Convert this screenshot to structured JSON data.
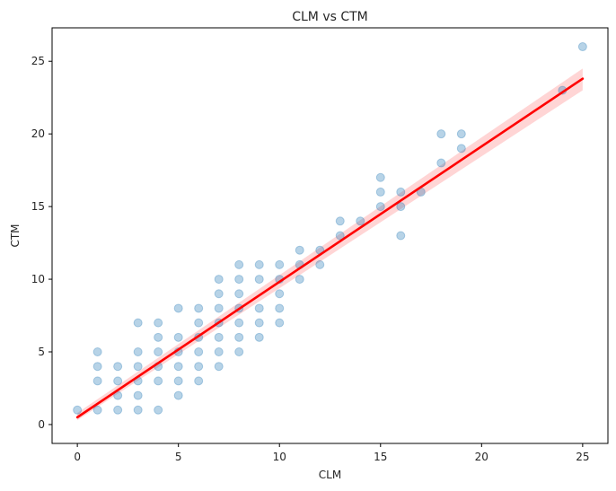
{
  "chart_data": {
    "type": "scatter",
    "title": "CLM vs CTM",
    "xlabel": "CLM",
    "ylabel": "CTM",
    "xlim": [
      -1.25,
      26.25
    ],
    "ylim": [
      -1.3,
      27.3
    ],
    "xticks": [
      0,
      5,
      10,
      15,
      20,
      25
    ],
    "yticks": [
      0,
      5,
      10,
      15,
      20,
      25
    ],
    "grid": false,
    "points": [
      [
        0,
        1
      ],
      [
        1,
        1
      ],
      [
        1,
        3
      ],
      [
        1,
        4
      ],
      [
        1,
        5
      ],
      [
        2,
        1
      ],
      [
        2,
        2
      ],
      [
        2,
        3
      ],
      [
        2,
        4
      ],
      [
        3,
        1
      ],
      [
        3,
        2
      ],
      [
        3,
        3
      ],
      [
        3,
        4
      ],
      [
        3,
        5
      ],
      [
        3,
        7
      ],
      [
        4,
        1
      ],
      [
        4,
        3
      ],
      [
        4,
        4
      ],
      [
        4,
        5
      ],
      [
        4,
        6
      ],
      [
        4,
        7
      ],
      [
        5,
        2
      ],
      [
        5,
        3
      ],
      [
        5,
        4
      ],
      [
        5,
        5
      ],
      [
        5,
        6
      ],
      [
        5,
        8
      ],
      [
        6,
        3
      ],
      [
        6,
        4
      ],
      [
        6,
        5
      ],
      [
        6,
        6
      ],
      [
        6,
        7
      ],
      [
        6,
        8
      ],
      [
        7,
        4
      ],
      [
        7,
        5
      ],
      [
        7,
        6
      ],
      [
        7,
        7
      ],
      [
        7,
        8
      ],
      [
        7,
        9
      ],
      [
        7,
        10
      ],
      [
        8,
        5
      ],
      [
        8,
        6
      ],
      [
        8,
        7
      ],
      [
        8,
        8
      ],
      [
        8,
        9
      ],
      [
        8,
        10
      ],
      [
        8,
        11
      ],
      [
        9,
        6
      ],
      [
        9,
        7
      ],
      [
        9,
        8
      ],
      [
        9,
        10
      ],
      [
        9,
        11
      ],
      [
        10,
        7
      ],
      [
        10,
        8
      ],
      [
        10,
        9
      ],
      [
        10,
        10
      ],
      [
        10,
        11
      ],
      [
        11,
        10
      ],
      [
        11,
        11
      ],
      [
        11,
        12
      ],
      [
        12,
        11
      ],
      [
        12,
        12
      ],
      [
        13,
        13
      ],
      [
        13,
        14
      ],
      [
        14,
        14
      ],
      [
        15,
        15
      ],
      [
        15,
        16
      ],
      [
        15,
        17
      ],
      [
        16,
        13
      ],
      [
        16,
        15
      ],
      [
        16,
        16
      ],
      [
        17,
        16
      ],
      [
        18,
        18
      ],
      [
        18,
        20
      ],
      [
        19,
        19
      ],
      [
        19,
        20
      ],
      [
        24,
        23
      ],
      [
        25,
        26
      ]
    ],
    "point_color": "#1f77b4",
    "regression": {
      "x": [
        0,
        25
      ],
      "y": [
        0.5,
        23.8
      ],
      "band": {
        "lower": [
          0.3,
          23.0
        ],
        "upper": [
          0.8,
          24.5
        ]
      },
      "line_color": "#ff0000",
      "band_color": "#ffb3b3"
    }
  }
}
